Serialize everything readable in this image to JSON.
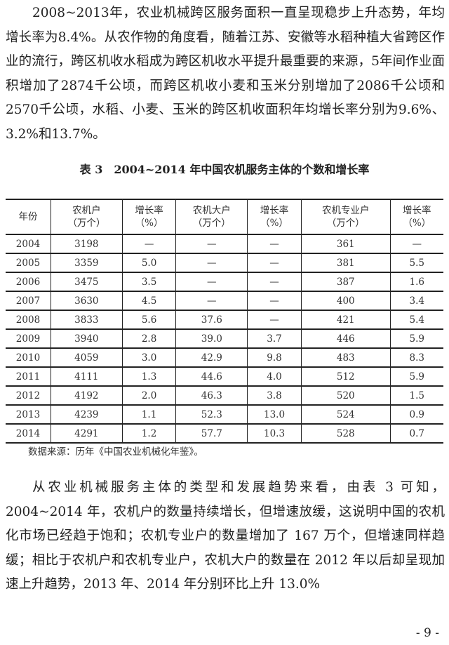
{
  "paragraph1": "2008~2013年，农业机械跨区服务面积一直呈现稳步上升态势，年均增长率为8.4%。从农作物的角度看，随着江苏、安徽等水稻种植大省跨区作业的流行，跨区机收水稻成为跨区机收水平提升最重要的来源，5年间作业面积增加了2874千公顷，而跨区机收小麦和玉米分别增加了2086千公顷和2570千公顷，水稻、小麦、玉米的跨区机收面积年均增长率分别为9.6%、3.2%和13.7%。",
  "table": {
    "caption": "表 3　2004~2014 年中国农机服务主体的个数和增长率",
    "headers": [
      [
        "年份",
        ""
      ],
      [
        "农机户",
        "（万个）"
      ],
      [
        "增长率",
        "（%）"
      ],
      [
        "农机大户",
        "（万个）"
      ],
      [
        "增长率",
        "（%）"
      ],
      [
        "农机专业户",
        "（万个）"
      ],
      [
        "增长率",
        "（%）"
      ]
    ],
    "rows": [
      [
        "2004",
        "3198",
        "—",
        "—",
        "—",
        "361",
        "—"
      ],
      [
        "2005",
        "3359",
        "5.0",
        "—",
        "—",
        "381",
        "5.5"
      ],
      [
        "2006",
        "3475",
        "3.5",
        "—",
        "—",
        "387",
        "1.6"
      ],
      [
        "2007",
        "3630",
        "4.5",
        "—",
        "—",
        "400",
        "3.4"
      ],
      [
        "2008",
        "3833",
        "5.6",
        "37.6",
        "—",
        "421",
        "5.4"
      ],
      [
        "2009",
        "3940",
        "2.8",
        "39.0",
        "3.7",
        "446",
        "5.9"
      ],
      [
        "2010",
        "4059",
        "3.0",
        "42.9",
        "9.8",
        "483",
        "8.3"
      ],
      [
        "2011",
        "4111",
        "1.3",
        "44.6",
        "4.0",
        "512",
        "5.9"
      ],
      [
        "2012",
        "4192",
        "2.0",
        "46.3",
        "3.8",
        "520",
        "1.5"
      ],
      [
        "2013",
        "4239",
        "1.1",
        "52.3",
        "13.0",
        "524",
        "0.9"
      ],
      [
        "2014",
        "4291",
        "1.2",
        "57.7",
        "10.3",
        "528",
        "0.7"
      ]
    ],
    "source": "数据来源：历年《中国农业机械化年鉴》。"
  },
  "paragraph2": "从农业机械服务主体的类型和发展趋势来看，由表 3 可知，2004~2014 年，农机户的数量持续增长，但增速放缓，这说明中国的农机化市场已经趋于饱和；农机专业户的数量增加了 167 万个，但增速同样趋缓；相比于农机户和农机专业户，农机大户的数量在 2012 年以后却呈现加速上升趋势，2013 年、2014 年分别环比上升 13.0%",
  "page_number": "- 9 -"
}
